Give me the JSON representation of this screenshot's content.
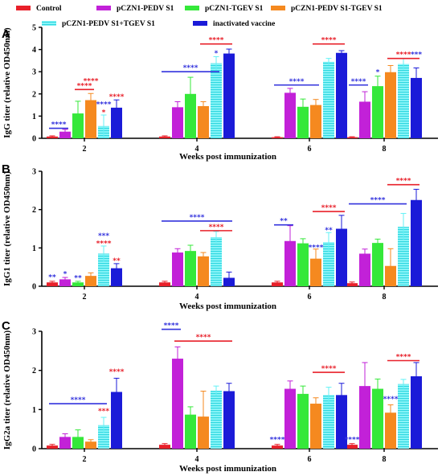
{
  "legend": [
    {
      "name": "Control",
      "color": "#e8202a",
      "pattern": "solid"
    },
    {
      "name": "pCZN1-PEDV S1",
      "color": "#c221d8",
      "pattern": "solid"
    },
    {
      "name": "pCZN1-TGEV S1",
      "color": "#35e83a",
      "pattern": "solid"
    },
    {
      "name": "pCZN1-PEDV S1-TGEV S1",
      "color": "#f5891f",
      "pattern": "solid"
    },
    {
      "name": "pCZN1-PEDV S1+TGEV S1",
      "color": "#63f2f6",
      "pattern": "striped"
    },
    {
      "name": "inactivated vaccine",
      "color": "#1b1bd8",
      "pattern": "solid"
    }
  ],
  "chart_data": [
    {
      "type": "bar",
      "panel": "A",
      "categories": [
        "2",
        "4",
        "6",
        "8"
      ],
      "xlabel": "Weeks post immunization",
      "ylabel": "IgG titer (relative OD450nm)",
      "ylim": [
        0,
        5
      ],
      "yticks": [
        "0",
        "1",
        "2",
        "3",
        "4",
        "5"
      ],
      "series": [
        {
          "name": "Control",
          "values": [
            0.08,
            0.08,
            0.05,
            0.05
          ],
          "errors": [
            0.03,
            0.03,
            0.02,
            0.02
          ]
        },
        {
          "name": "pCZN1-PEDV S1",
          "values": [
            0.3,
            1.4,
            2.05,
            1.65
          ],
          "errors": [
            0.1,
            0.25,
            0.2,
            0.45
          ]
        },
        {
          "name": "pCZN1-TGEV S1",
          "values": [
            1.12,
            2.0,
            1.42,
            2.35
          ],
          "errors": [
            0.55,
            0.75,
            0.35,
            0.45
          ]
        },
        {
          "name": "pCZN1-PEDV S1-TGEV S1",
          "values": [
            1.72,
            1.45,
            1.5,
            2.98
          ],
          "errors": [
            0.3,
            0.2,
            0.25,
            0.3
          ]
        },
        {
          "name": "pCZN1-PEDV S1+TGEV S1",
          "values": [
            0.55,
            3.38,
            3.45,
            3.35
          ],
          "errors": [
            0.5,
            0.3,
            0.15,
            0.25
          ]
        },
        {
          "name": "inactivated vaccine",
          "values": [
            1.38,
            3.82,
            3.85,
            2.72
          ],
          "errors": [
            0.35,
            0.2,
            0.1,
            0.45
          ]
        }
      ],
      "annotations": [
        {
          "text": "****",
          "color": "#3333dd",
          "group": 0,
          "bar": 0,
          "bar2": 1,
          "y": 0.45
        },
        {
          "text": "****",
          "color": "#e8202a",
          "group": 0,
          "bar": 2,
          "bar2": 3,
          "y": 2.2
        },
        {
          "text": "****",
          "color": "#e8202a",
          "group": 0,
          "bar": 3,
          "y": 2.55
        },
        {
          "text": "*",
          "color": "#e8202a",
          "group": 0,
          "bar": 4,
          "y": 1.15
        },
        {
          "text": "****",
          "color": "#3333dd",
          "group": 0,
          "bar": 4,
          "y": 1.5
        },
        {
          "text": "****",
          "color": "#e8202a",
          "group": 0,
          "bar": 5,
          "y": 1.85
        },
        {
          "text": "****",
          "color": "#3333dd",
          "group": 1,
          "bar": 0,
          "bar2": 4,
          "y": 3.0
        },
        {
          "text": "*",
          "color": "#3333dd",
          "group": 1,
          "bar": 4,
          "y": 3.8
        },
        {
          "text": "****",
          "color": "#e8202a",
          "group": 1,
          "bar": 3,
          "bar2": 5,
          "y": 4.25
        },
        {
          "text": "****",
          "color": "#3333dd",
          "group": 2,
          "bar": 0,
          "bar2": 3,
          "y": 2.4
        },
        {
          "text": "****",
          "color": "#e8202a",
          "group": 2,
          "bar": 3,
          "bar2": 5,
          "y": 4.25
        },
        {
          "text": "****",
          "color": "#3333dd",
          "group": 3,
          "bar": 0,
          "bar2": 1,
          "y": 2.4
        },
        {
          "text": "*",
          "color": "#3333dd",
          "group": 3,
          "bar": 2,
          "y": 2.95
        },
        {
          "text": "****",
          "color": "#e8202a",
          "group": 3,
          "bar": 3,
          "bar2": 5,
          "y": 3.6
        },
        {
          "text": "***",
          "color": "#3333dd",
          "group": 3,
          "bar": 5,
          "y": 3.75
        }
      ]
    },
    {
      "type": "bar",
      "panel": "B",
      "categories": [
        "2",
        "4",
        "6",
        "8"
      ],
      "xlabel": "Weeks post immunization",
      "ylabel": "IgG1 titer (relative OD450nm)",
      "ylim": [
        0,
        3
      ],
      "yticks": [
        "0",
        "1",
        "2",
        "3"
      ],
      "series": [
        {
          "name": "Control",
          "values": [
            0.1,
            0.1,
            0.1,
            0.08
          ],
          "errors": [
            0.03,
            0.03,
            0.03,
            0.03
          ]
        },
        {
          "name": "pCZN1-PEDV S1",
          "values": [
            0.18,
            0.88,
            1.18,
            0.85
          ],
          "errors": [
            0.05,
            0.1,
            0.4,
            0.12
          ]
        },
        {
          "name": "pCZN1-TGEV S1",
          "values": [
            0.1,
            0.92,
            1.12,
            1.13
          ],
          "errors": [
            0.03,
            0.15,
            0.12,
            0.1
          ]
        },
        {
          "name": "pCZN1-PEDV S1-TGEV S1",
          "values": [
            0.27,
            0.78,
            0.72,
            0.53
          ],
          "errors": [
            0.08,
            0.1,
            0.25,
            0.45
          ]
        },
        {
          "name": "pCZN1-PEDV S1+TGEV S1",
          "values": [
            0.85,
            1.28,
            1.15,
            1.55
          ],
          "errors": [
            0.2,
            0.15,
            0.25,
            0.35
          ]
        },
        {
          "name": "inactivated vaccine",
          "values": [
            0.47,
            0.22,
            1.5,
            2.25
          ],
          "errors": [
            0.12,
            0.15,
            0.35,
            0.28
          ]
        }
      ],
      "annotations": [
        {
          "text": "**",
          "color": "#3333dd",
          "group": 0,
          "bar": 0,
          "y": 0.22
        },
        {
          "text": "*",
          "color": "#3333dd",
          "group": 0,
          "bar": 1,
          "y": 0.3
        },
        {
          "text": "**",
          "color": "#3333dd",
          "group": 0,
          "bar": 2,
          "y": 0.2
        },
        {
          "text": "****",
          "color": "#e8202a",
          "group": 0,
          "bar": 4,
          "y": 1.1
        },
        {
          "text": "***",
          "color": "#3333dd",
          "group": 0,
          "bar": 4,
          "y": 1.3
        },
        {
          "text": "**",
          "color": "#e8202a",
          "group": 0,
          "bar": 5,
          "y": 0.65
        },
        {
          "text": "****",
          "color": "#3333dd",
          "group": 1,
          "bar": 0,
          "bar2": 5,
          "y": 1.7
        },
        {
          "text": "****",
          "color": "#e8202a",
          "group": 1,
          "bar": 3,
          "bar2": 5,
          "y": 1.45
        },
        {
          "text": "**",
          "color": "#3333dd",
          "group": 2,
          "bar": 0,
          "bar2": 1,
          "y": 1.6
        },
        {
          "text": "****",
          "color": "#e8202a",
          "group": 2,
          "bar": 3,
          "bar2": 5,
          "y": 1.95
        },
        {
          "text": "****",
          "color": "#3333dd",
          "group": 2,
          "bar": 3,
          "y": 1.0
        },
        {
          "text": "**",
          "color": "#3333dd",
          "group": 2,
          "bar": 4,
          "y": 1.45
        },
        {
          "text": "****",
          "color": "#3333dd",
          "group": 3,
          "bar": 0,
          "bar2": 4,
          "y": 2.15
        },
        {
          "text": "****",
          "color": "#e8202a",
          "group": 3,
          "bar": 3,
          "bar2": 5,
          "y": 2.65
        }
      ]
    },
    {
      "type": "bar",
      "panel": "C",
      "categories": [
        "2",
        "4",
        "6",
        "8"
      ],
      "xlabel": "Weeks post immunization",
      "ylabel": "IgG2a titer (relative OD450nm)",
      "ylim": [
        0,
        3
      ],
      "yticks": [
        "0",
        "1",
        "2",
        "3"
      ],
      "series": [
        {
          "name": "Control",
          "values": [
            0.08,
            0.1,
            0.08,
            0.1
          ],
          "errors": [
            0.03,
            0.03,
            0.03,
            0.03
          ]
        },
        {
          "name": "pCZN1-PEDV S1",
          "values": [
            0.3,
            2.3,
            1.53,
            1.6
          ],
          "errors": [
            0.08,
            0.3,
            0.2,
            0.6
          ]
        },
        {
          "name": "pCZN1-TGEV S1",
          "values": [
            0.3,
            0.87,
            1.4,
            1.53
          ],
          "errors": [
            0.18,
            0.2,
            0.2,
            0.25
          ]
        },
        {
          "name": "pCZN1-PEDV S1-TGEV S1",
          "values": [
            0.18,
            0.82,
            1.15,
            0.92
          ],
          "errors": [
            0.05,
            0.65,
            0.15,
            0.2
          ]
        },
        {
          "name": "pCZN1-PEDV S1+TGEV S1",
          "values": [
            0.6,
            1.48,
            1.37,
            1.65
          ],
          "errors": [
            0.2,
            0.12,
            0.2,
            0.12
          ]
        },
        {
          "name": "inactivated vaccine",
          "values": [
            1.45,
            1.47,
            1.37,
            1.85
          ],
          "errors": [
            0.35,
            0.2,
            0.3,
            0.35
          ]
        }
      ],
      "annotations": [
        {
          "text": "****",
          "color": "#3333dd",
          "group": 0,
          "bar": 0,
          "bar2": 4,
          "y": 1.15
        },
        {
          "text": "***",
          "color": "#e8202a",
          "group": 0,
          "bar": 4,
          "y": 0.95
        },
        {
          "text": "****",
          "color": "#e8202a",
          "group": 0,
          "bar": 5,
          "y": 1.95
        },
        {
          "text": "****",
          "color": "#3333dd",
          "group": 1,
          "bar": 0,
          "bar2": 1,
          "y": 3.05
        },
        {
          "text": "****",
          "color": "#e8202a",
          "group": 1,
          "bar": 1,
          "bar2": 5,
          "y": 2.75
        },
        {
          "text": "****",
          "color": "#3333dd",
          "group": 2,
          "bar": 0,
          "y": 0.22
        },
        {
          "text": "****",
          "color": "#e8202a",
          "group": 2,
          "bar": 3,
          "bar2": 5,
          "y": 1.95
        },
        {
          "text": "****",
          "color": "#3333dd",
          "group": 3,
          "bar": 0,
          "y": 0.22
        },
        {
          "text": "****",
          "color": "#3333dd",
          "group": 3,
          "bar": 3,
          "y": 1.25
        },
        {
          "text": "****",
          "color": "#e8202a",
          "group": 3,
          "bar": 3,
          "bar2": 5,
          "y": 2.25
        }
      ]
    }
  ]
}
